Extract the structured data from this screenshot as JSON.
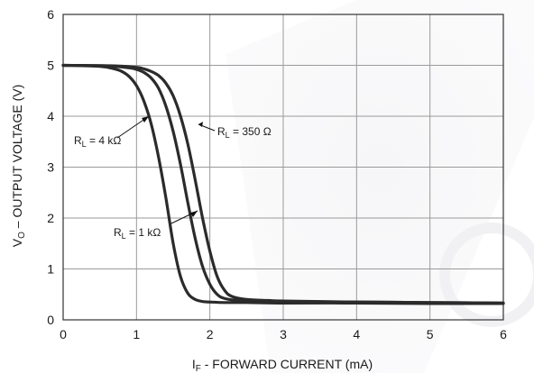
{
  "chart_data": {
    "type": "line",
    "xlabel": {
      "main": "I",
      "sub": "F",
      "rest": " - FORWARD CURRENT (mA)"
    },
    "ylabel": {
      "main": "V",
      "sub": "O",
      "rest": " – OUTPUT VOLTAGE (V)"
    },
    "xlim": [
      0,
      6
    ],
    "ylim": [
      0,
      6
    ],
    "xticks": [
      "0",
      "1",
      "2",
      "3",
      "4",
      "5",
      "6"
    ],
    "yticks": [
      "0",
      "1",
      "2",
      "3",
      "4",
      "5",
      "6"
    ],
    "grid": true,
    "series": [
      {
        "name": "R_L = 4 kΩ",
        "label": {
          "main": "R",
          "sub": "L",
          "rest": " = 4 kΩ"
        },
        "x": [
          0,
          0.5,
          0.7,
          0.8,
          0.9,
          1.0,
          1.1,
          1.2,
          1.3,
          1.4,
          1.5,
          1.6,
          1.7,
          1.8,
          1.9,
          2.0,
          2.2,
          2.5,
          3.0,
          4.0,
          5.0,
          6.0
        ],
        "y": [
          5.0,
          4.98,
          4.93,
          4.88,
          4.78,
          4.6,
          4.3,
          3.85,
          3.2,
          2.4,
          1.5,
          0.85,
          0.52,
          0.4,
          0.36,
          0.35,
          0.34,
          0.34,
          0.33,
          0.33,
          0.32,
          0.32
        ]
      },
      {
        "name": "R_L = 1 kΩ",
        "label": {
          "main": "R",
          "sub": "L",
          "rest": " = 1 kΩ"
        },
        "x": [
          0,
          0.6,
          0.9,
          1.0,
          1.1,
          1.2,
          1.3,
          1.4,
          1.5,
          1.6,
          1.7,
          1.8,
          1.9,
          2.0,
          2.1,
          2.2,
          2.4,
          2.7,
          3.0,
          4.0,
          5.0,
          6.0
        ],
        "y": [
          5.0,
          4.99,
          4.95,
          4.92,
          4.86,
          4.75,
          4.55,
          4.2,
          3.7,
          3.05,
          2.3,
          1.6,
          1.05,
          0.7,
          0.5,
          0.42,
          0.38,
          0.37,
          0.36,
          0.35,
          0.34,
          0.33
        ]
      },
      {
        "name": "R_L = 350 Ω",
        "label": {
          "main": "R",
          "sub": "L",
          "rest": " = 350 Ω"
        },
        "x": [
          0,
          0.7,
          1.0,
          1.1,
          1.2,
          1.3,
          1.4,
          1.5,
          1.6,
          1.7,
          1.8,
          1.9,
          2.0,
          2.1,
          2.2,
          2.3,
          2.5,
          2.8,
          3.0,
          4.0,
          5.0,
          6.0
        ],
        "y": [
          5.0,
          4.99,
          4.96,
          4.93,
          4.88,
          4.8,
          4.65,
          4.4,
          4.0,
          3.45,
          2.75,
          2.0,
          1.35,
          0.85,
          0.58,
          0.46,
          0.4,
          0.38,
          0.37,
          0.35,
          0.34,
          0.33
        ]
      }
    ]
  }
}
